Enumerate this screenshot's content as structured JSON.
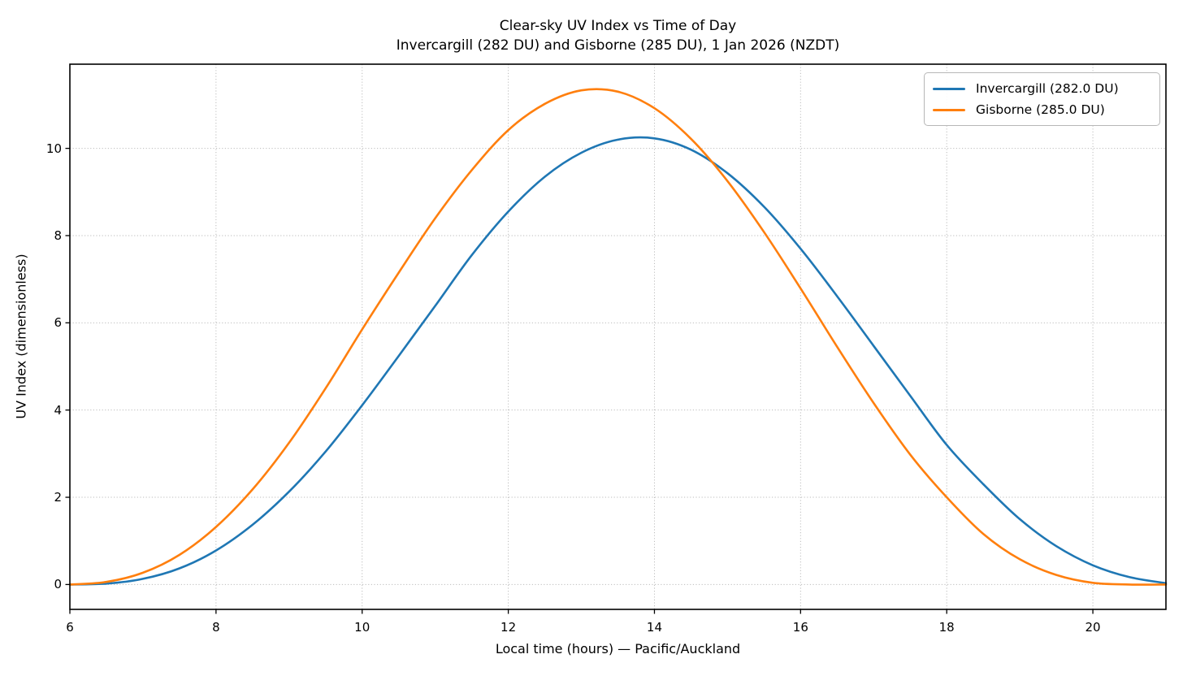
{
  "figure": {
    "background": "#ffffff"
  },
  "chart_data": {
    "type": "line",
    "title": "Clear-sky UV Index vs Time of Day",
    "subtitle": "Invercargill (282 DU) and Gisborne (285 DU), 1 Jan 2026 (NZDT)",
    "xlabel": "Local time (hours) — Pacific/Auckland",
    "ylabel": "UV Index (dimensionless)",
    "xlim": [
      6,
      21
    ],
    "ylim": [
      -0.57,
      11.93
    ],
    "xticks": [
      6,
      8,
      10,
      12,
      14,
      16,
      18,
      20
    ],
    "yticks": [
      0,
      2,
      4,
      6,
      8,
      10
    ],
    "grid": {
      "visible": true,
      "linestyle": "dotted",
      "color": "#b0b0b0"
    },
    "legend": {
      "position": "upper right"
    },
    "x": [
      6,
      6.5,
      7,
      7.5,
      8,
      8.5,
      9,
      9.5,
      10,
      10.5,
      11,
      11.5,
      12,
      12.5,
      13,
      13.5,
      14,
      14.5,
      15,
      15.5,
      16,
      16.5,
      17,
      17.5,
      18,
      18.5,
      19,
      19.5,
      20,
      20.5,
      21
    ],
    "series": [
      {
        "name": "Invercargill (282.0 DU)",
        "color": "#1f77b4",
        "values": [
          0.0,
          0.02,
          0.13,
          0.37,
          0.78,
          1.37,
          2.13,
          3.05,
          4.11,
          5.24,
          6.39,
          7.55,
          8.55,
          9.35,
          9.9,
          10.2,
          10.23,
          9.97,
          9.43,
          8.66,
          7.7,
          6.61,
          5.47,
          4.33,
          3.2,
          2.3,
          1.5,
          0.88,
          0.44,
          0.17,
          0.03
        ]
      },
      {
        "name": "Gisborne (285.0 DU)",
        "color": "#ff7f0e",
        "values": [
          0.0,
          0.06,
          0.27,
          0.68,
          1.32,
          2.18,
          3.25,
          4.5,
          5.85,
          7.15,
          8.4,
          9.5,
          10.42,
          11.02,
          11.33,
          11.3,
          10.92,
          10.22,
          9.25,
          8.08,
          6.79,
          5.45,
          4.16,
          2.98,
          2.0,
          1.16,
          0.58,
          0.22,
          0.04,
          0.0,
          0.0
        ]
      }
    ]
  }
}
